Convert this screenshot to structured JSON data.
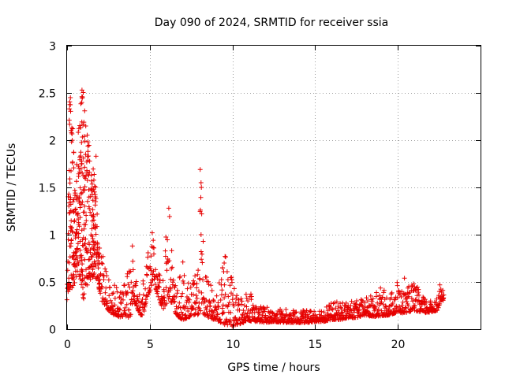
{
  "chart_data": {
    "type": "scatter",
    "title": "Day 090 of 2024, SRMTID for receiver ssia",
    "xlabel": "GPS time / hours",
    "ylabel": "SRMTID / TECUs",
    "xlim": [
      0,
      25
    ],
    "ylim": [
      0,
      3
    ],
    "xticks": [
      0,
      5,
      10,
      15,
      20
    ],
    "xtick_labels": [
      "0",
      "5",
      "10",
      "15",
      "20"
    ],
    "yticks": [
      0,
      0.5,
      1,
      1.5,
      2,
      2.5,
      3
    ],
    "ytick_labels": [
      "0",
      "0.5",
      "1",
      "1.5",
      "2",
      "2.5",
      "3"
    ],
    "grid": true,
    "marker": "+",
    "marker_color": "#e60000",
    "series": [
      {
        "name": "SRMTID",
        "envelope_x": [
          0.0,
          0.15,
          0.3,
          0.5,
          0.7,
          0.9,
          1.0,
          1.1,
          1.3,
          1.5,
          1.7,
          1.9,
          2.1,
          2.3,
          2.5,
          2.8,
          3.0,
          3.2,
          3.5,
          3.8,
          4.0,
          4.2,
          4.4,
          4.6,
          4.8,
          5.0,
          5.2,
          5.4,
          5.6,
          5.8,
          6.0,
          6.2,
          6.4,
          6.6,
          6.8,
          7.0,
          7.3,
          7.6,
          7.9,
          8.1,
          8.3,
          8.6,
          8.9,
          9.2,
          9.5,
          9.8,
          10.0,
          10.3,
          10.6,
          10.9,
          11.2,
          11.5,
          12.0,
          12.5,
          13.0,
          13.5,
          14.0,
          14.5,
          15.0,
          15.5,
          16.0,
          16.5,
          17.0,
          17.5,
          18.0,
          18.5,
          19.0,
          19.5,
          20.0,
          20.3,
          20.6,
          21.0,
          21.5,
          22.0,
          22.4,
          22.6,
          22.8
        ],
        "envelope_low": [
          0.38,
          0.42,
          0.4,
          0.5,
          0.6,
          0.4,
          0.3,
          0.4,
          0.5,
          0.55,
          0.5,
          0.45,
          0.3,
          0.25,
          0.2,
          0.15,
          0.15,
          0.12,
          0.15,
          0.1,
          0.3,
          0.25,
          0.15,
          0.15,
          0.3,
          0.4,
          0.5,
          0.4,
          0.3,
          0.2,
          0.25,
          0.35,
          0.2,
          0.15,
          0.12,
          0.1,
          0.12,
          0.15,
          0.15,
          0.2,
          0.15,
          0.12,
          0.1,
          0.08,
          0.05,
          0.04,
          0.03,
          0.05,
          0.06,
          0.1,
          0.08,
          0.08,
          0.07,
          0.08,
          0.07,
          0.07,
          0.07,
          0.07,
          0.08,
          0.08,
          0.1,
          0.1,
          0.12,
          0.12,
          0.15,
          0.13,
          0.14,
          0.15,
          0.18,
          0.17,
          0.18,
          0.2,
          0.17,
          0.18,
          0.2,
          0.3,
          0.3
        ],
        "envelope_high": [
          0.5,
          2.45,
          2.4,
          1.5,
          2.3,
          2.55,
          2.52,
          2.4,
          2.0,
          1.6,
          1.85,
          0.9,
          0.8,
          0.75,
          0.55,
          0.5,
          0.5,
          0.4,
          0.6,
          0.8,
          0.88,
          0.6,
          0.4,
          0.6,
          0.85,
          0.9,
          1.02,
          0.7,
          0.6,
          0.6,
          1.1,
          1.28,
          0.9,
          0.4,
          0.55,
          0.7,
          0.5,
          0.5,
          0.65,
          1.7,
          0.6,
          0.5,
          0.4,
          0.5,
          0.77,
          0.8,
          0.5,
          0.35,
          0.4,
          0.43,
          0.4,
          0.25,
          0.25,
          0.2,
          0.22,
          0.2,
          0.2,
          0.2,
          0.22,
          0.25,
          0.28,
          0.3,
          0.3,
          0.3,
          0.33,
          0.37,
          0.45,
          0.35,
          0.55,
          0.4,
          0.45,
          0.5,
          0.35,
          0.3,
          0.35,
          0.52,
          0.35
        ]
      }
    ],
    "outliers": [
      [
        8.05,
        1.69
      ],
      [
        8.1,
        1.55
      ],
      [
        8.12,
        1.5
      ],
      [
        8.06,
        1.26
      ],
      [
        8.14,
        1.22
      ],
      [
        8.1,
        1.0
      ],
      [
        9.55,
        0.77
      ],
      [
        9.5,
        0.7
      ],
      [
        9.4,
        0.65
      ],
      [
        7.0,
        0.71
      ],
      [
        20.4,
        0.54
      ],
      [
        0.9,
        2.53
      ],
      [
        0.2,
        2.45
      ],
      [
        1.75,
        1.83
      ],
      [
        6.15,
        1.28
      ],
      [
        5.15,
        1.02
      ],
      [
        3.95,
        0.88
      ]
    ]
  }
}
